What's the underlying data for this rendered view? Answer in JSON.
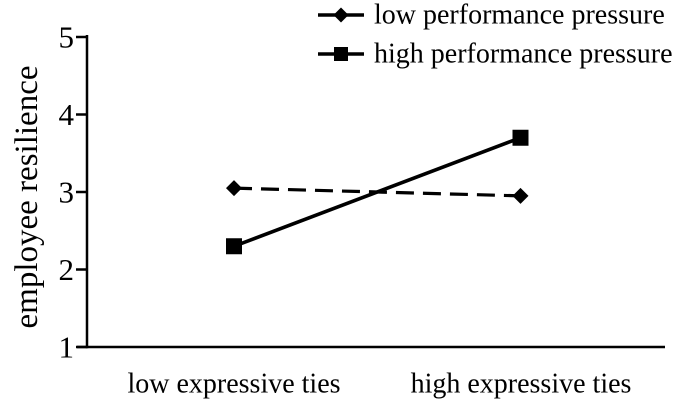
{
  "figure": {
    "background": "#ffffff",
    "line_color": "#000000"
  },
  "chart_data": {
    "type": "line",
    "title": "",
    "xlabel": "",
    "ylabel": "employee resilience",
    "categories": [
      "low expressive ties",
      "high expressive ties"
    ],
    "series": [
      {
        "name": "low performance pressure",
        "marker": "diamond",
        "line_style": "dashed",
        "color": "#000000",
        "values": [
          3.05,
          2.95
        ]
      },
      {
        "name": "high performance pressure",
        "marker": "square",
        "line_style": "solid",
        "color": "#000000",
        "values": [
          2.3,
          3.7
        ]
      }
    ],
    "ylim": [
      1,
      5
    ],
    "yticks": [
      1,
      2,
      3,
      4,
      5
    ],
    "grid": false,
    "legend_position": "top-right",
    "axis_color": "#000000",
    "text_color": "#000000",
    "background": "#ffffff"
  }
}
